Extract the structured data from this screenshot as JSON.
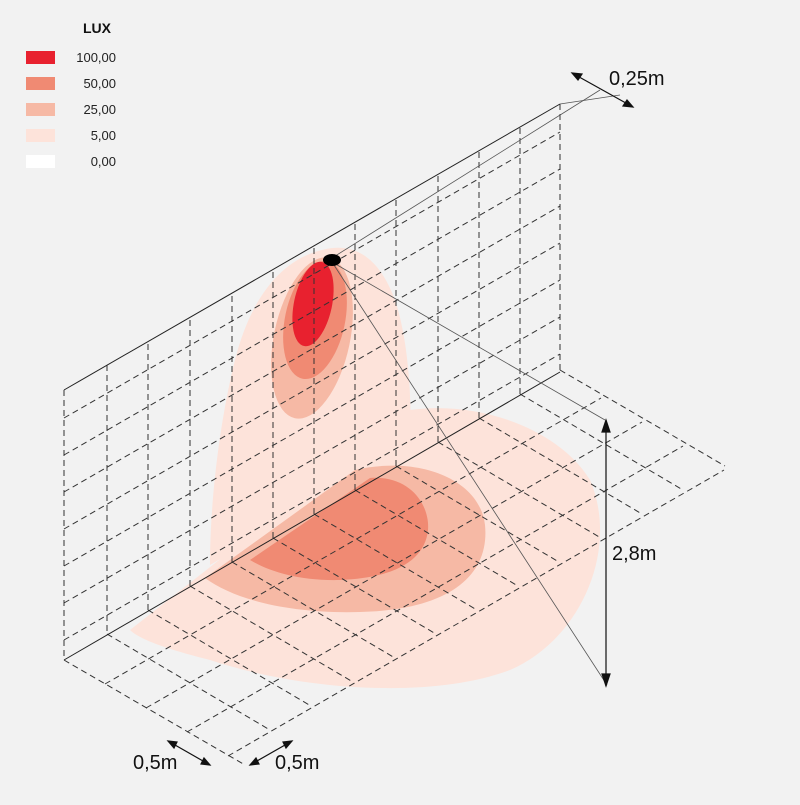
{
  "legend": {
    "title": "LUX",
    "items": [
      {
        "label": "100,00",
        "color": "#e8212f"
      },
      {
        "label": "50,00",
        "color": "#f08a73"
      },
      {
        "label": "25,00",
        "color": "#f6b9a5"
      },
      {
        "label": "5,00",
        "color": "#fde3da"
      },
      {
        "label": "0,00",
        "color": "#ffffff"
      }
    ]
  },
  "dimensions": {
    "offset": "0,25m",
    "height": "2,8m",
    "grid_x": "0,5m",
    "grid_y": "0,5m"
  },
  "colors": {
    "background": "#f2f2f2",
    "line": "#333333",
    "fixture": "#000000"
  }
}
